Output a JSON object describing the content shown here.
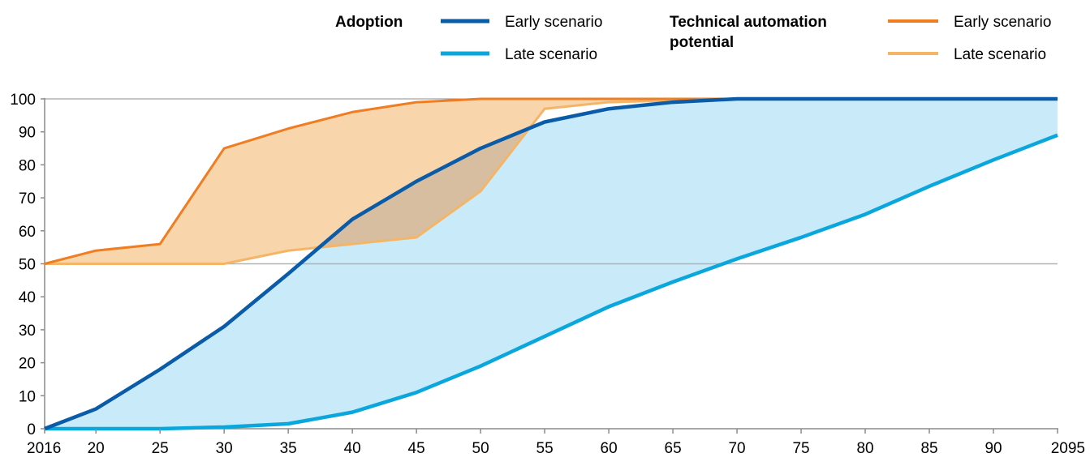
{
  "chart_data": {
    "type": "area",
    "x": [
      2016,
      2020,
      2025,
      2030,
      2035,
      2040,
      2045,
      2050,
      2055,
      2060,
      2065,
      2070,
      2075,
      2080,
      2085,
      2090,
      2095
    ],
    "x_tick_labels": [
      "2016",
      "20",
      "25",
      "30",
      "35",
      "40",
      "45",
      "50",
      "55",
      "60",
      "65",
      "70",
      "75",
      "80",
      "85",
      "90",
      "2095"
    ],
    "y_ticks": [
      0,
      10,
      20,
      30,
      40,
      50,
      60,
      70,
      80,
      90,
      100
    ],
    "y_tick_labels": [
      "0",
      "10",
      "20",
      "30",
      "40",
      "50",
      "60",
      "70",
      "80",
      "90",
      "100"
    ],
    "ylim": [
      0,
      100
    ],
    "reference_line": 50,
    "legend_groups": [
      {
        "heading": "Adoption",
        "entries": [
          {
            "label": "Early scenario",
            "color": "#0a5ba8"
          },
          {
            "label": "Late scenario",
            "color": "#0aa7dd"
          }
        ]
      },
      {
        "heading_line1": "Technical automation",
        "heading_line2": "potential",
        "entries": [
          {
            "label": "Early scenario",
            "color": "#ef7d22"
          },
          {
            "label": "Late scenario",
            "color": "#f5b566"
          }
        ]
      }
    ],
    "series": [
      {
        "group": "Adoption",
        "name": "Early scenario",
        "color": "#0a5ba8",
        "values": [
          0,
          6,
          18,
          31,
          47,
          63.5,
          75,
          85,
          93,
          97,
          99,
          100,
          100,
          100,
          100,
          100,
          100
        ]
      },
      {
        "group": "Adoption",
        "name": "Late scenario",
        "color": "#0aa7dd",
        "values": [
          0,
          0,
          0,
          0.5,
          1.5,
          5,
          11,
          19,
          28,
          37,
          44.5,
          51.5,
          58,
          65,
          73.5,
          81.5,
          89
        ]
      },
      {
        "group": "Technical automation potential",
        "name": "Early scenario",
        "color": "#ef7d22",
        "values": [
          50,
          54,
          56,
          85,
          91,
          96,
          99,
          100,
          100,
          100,
          100,
          100,
          100,
          100,
          100,
          100,
          100
        ]
      },
      {
        "group": "Technical automation potential",
        "name": "Late scenario",
        "color": "#f5b566",
        "values": [
          50,
          50,
          50,
          50,
          54,
          56,
          58,
          72,
          97,
          99,
          99.5,
          100,
          100,
          100,
          100,
          100,
          100
        ]
      }
    ],
    "fill_colors": {
      "adoption_band": "#c9eaf9",
      "automation_band": "#f9d5ab",
      "overlap": "#d8bea0"
    },
    "grid": false
  }
}
